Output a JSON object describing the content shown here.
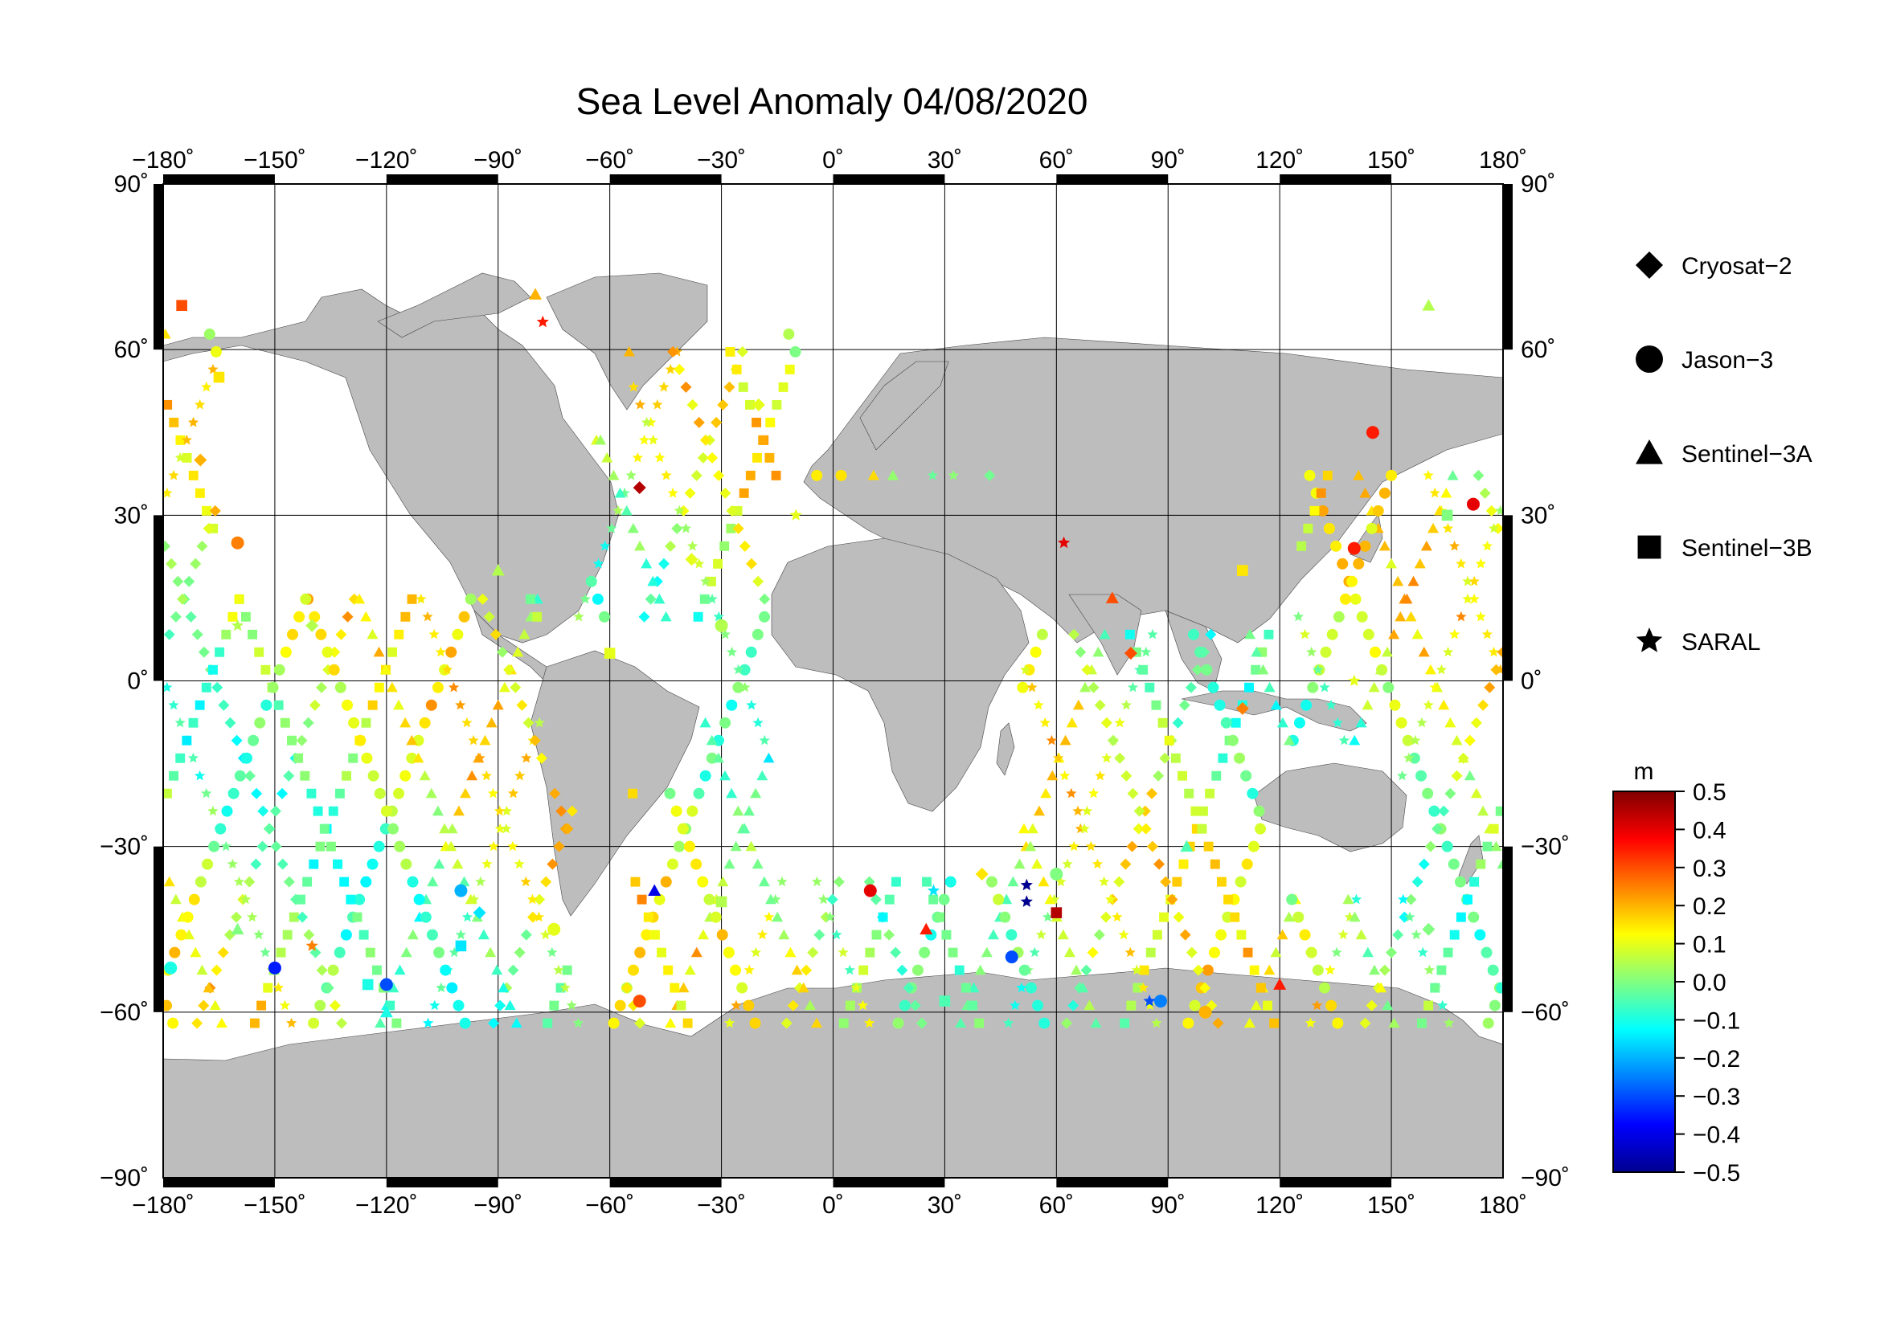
{
  "title": "Sea Level Anomaly 04/08/2020",
  "lon_ticks": [
    -180,
    -150,
    -120,
    -90,
    -60,
    -30,
    0,
    30,
    60,
    90,
    120,
    150,
    180
  ],
  "lat_ticks": [
    90,
    60,
    30,
    0,
    -30,
    -60,
    -90
  ],
  "lon_tick_labels": [
    "−180˚",
    "−150˚",
    "−120˚",
    "−90˚",
    "−60˚",
    "−30˚",
    "0˚",
    "30˚",
    "60˚",
    "90˚",
    "120˚",
    "150˚",
    "180˚"
  ],
  "lat_tick_labels": [
    "90˚",
    "60˚",
    "30˚",
    "0˚",
    "−30˚",
    "−60˚",
    "−90˚"
  ],
  "legend": [
    {
      "label": "Cryosat−2",
      "symbol": "diamond"
    },
    {
      "label": "Jason−3",
      "symbol": "circle"
    },
    {
      "label": "Sentinel−3A",
      "symbol": "triangle"
    },
    {
      "label": "Sentinel−3B",
      "symbol": "square"
    },
    {
      "label": "SARAL",
      "symbol": "star"
    }
  ],
  "colorbar": {
    "unit": "m",
    "ticks": [
      "0.5",
      "0.4",
      "0.3",
      "0.2",
      "0.1",
      "0.0",
      "−0.1",
      "−0.2",
      "−0.3",
      "−0.4",
      "−0.5"
    ],
    "range": [
      -0.5,
      0.5
    ],
    "colormap": [
      "#00008f",
      "#0000ff",
      "#0080ff",
      "#00ffff",
      "#80ff80",
      "#ffff00",
      "#ff8000",
      "#ff0000",
      "#800000"
    ]
  },
  "colors": {
    "land": "#bdbdbd",
    "ocean": "#ffffff",
    "frame": "#000000"
  },
  "chart_data": {
    "type": "scatter",
    "title": "Sea Level Anomaly 04/08/2020",
    "projection": "equirectangular",
    "xlim": [
      -180,
      180
    ],
    "ylim": [
      -90,
      90
    ],
    "grid": true,
    "legend_position": "right",
    "series": [
      {
        "name": "Cryosat−2",
        "marker": "diamond",
        "points": [
          [
            -52,
            35,
            0.45
          ],
          [
            -38,
            22,
            0.1
          ],
          [
            -140,
            10,
            0.05
          ],
          [
            160,
            -45,
            0.0
          ],
          [
            -170,
            40,
            0.2
          ],
          [
            80,
            5,
            0.3
          ],
          [
            -95,
            -42,
            -0.15
          ],
          [
            110,
            -5,
            0.25
          ],
          [
            40,
            -35,
            0.15
          ],
          [
            -20,
            50,
            0.1
          ]
        ]
      },
      {
        "name": "Jason−3",
        "marker": "circle",
        "points": [
          [
            -150,
            -52,
            -0.35
          ],
          [
            -120,
            -55,
            -0.3
          ],
          [
            -100,
            -38,
            -0.2
          ],
          [
            -52,
            -58,
            0.3
          ],
          [
            10,
            -38,
            0.4
          ],
          [
            48,
            -50,
            -0.3
          ],
          [
            88,
            -58,
            -0.25
          ],
          [
            145,
            45,
            0.35
          ],
          [
            172,
            32,
            0.4
          ],
          [
            140,
            24,
            0.35
          ],
          [
            -160,
            25,
            0.25
          ],
          [
            -75,
            -45,
            0.1
          ],
          [
            -30,
            10,
            0.05
          ],
          [
            100,
            -60,
            0.2
          ],
          [
            -178,
            -52,
            -0.1
          ],
          [
            60,
            -35,
            0.0
          ]
        ]
      },
      {
        "name": "Sentinel−3A",
        "marker": "triangle",
        "points": [
          [
            -48,
            -38,
            -0.4
          ],
          [
            -80,
            70,
            0.2
          ],
          [
            120,
            -55,
            0.35
          ],
          [
            75,
            15,
            0.3
          ],
          [
            -160,
            -45,
            0.0
          ],
          [
            25,
            -45,
            0.35
          ],
          [
            160,
            68,
            0.05
          ],
          [
            -120,
            -60,
            -0.1
          ],
          [
            -90,
            20,
            0.05
          ],
          [
            95,
            -30,
            -0.05
          ]
        ]
      },
      {
        "name": "Sentinel−3B",
        "marker": "square",
        "points": [
          [
            -175,
            68,
            0.3
          ],
          [
            -165,
            55,
            0.15
          ],
          [
            -100,
            -48,
            -0.15
          ],
          [
            -125,
            -55,
            -0.1
          ],
          [
            60,
            -42,
            0.45
          ],
          [
            -30,
            -40,
            0.05
          ],
          [
            110,
            20,
            0.15
          ],
          [
            165,
            30,
            0.0
          ],
          [
            30,
            -58,
            -0.05
          ],
          [
            -60,
            5,
            0.1
          ]
        ]
      },
      {
        "name": "SARAL",
        "marker": "star",
        "points": [
          [
            52,
            -40,
            -0.5
          ],
          [
            52,
            -37,
            -0.5
          ],
          [
            -78,
            65,
            0.35
          ],
          [
            62,
            25,
            0.4
          ],
          [
            27,
            -38,
            -0.15
          ],
          [
            85,
            -58,
            -0.3
          ],
          [
            -140,
            -48,
            0.25
          ],
          [
            -160,
            10,
            0.05
          ],
          [
            140,
            0,
            0.1
          ],
          [
            -10,
            30,
            0.1
          ]
        ]
      }
    ]
  }
}
